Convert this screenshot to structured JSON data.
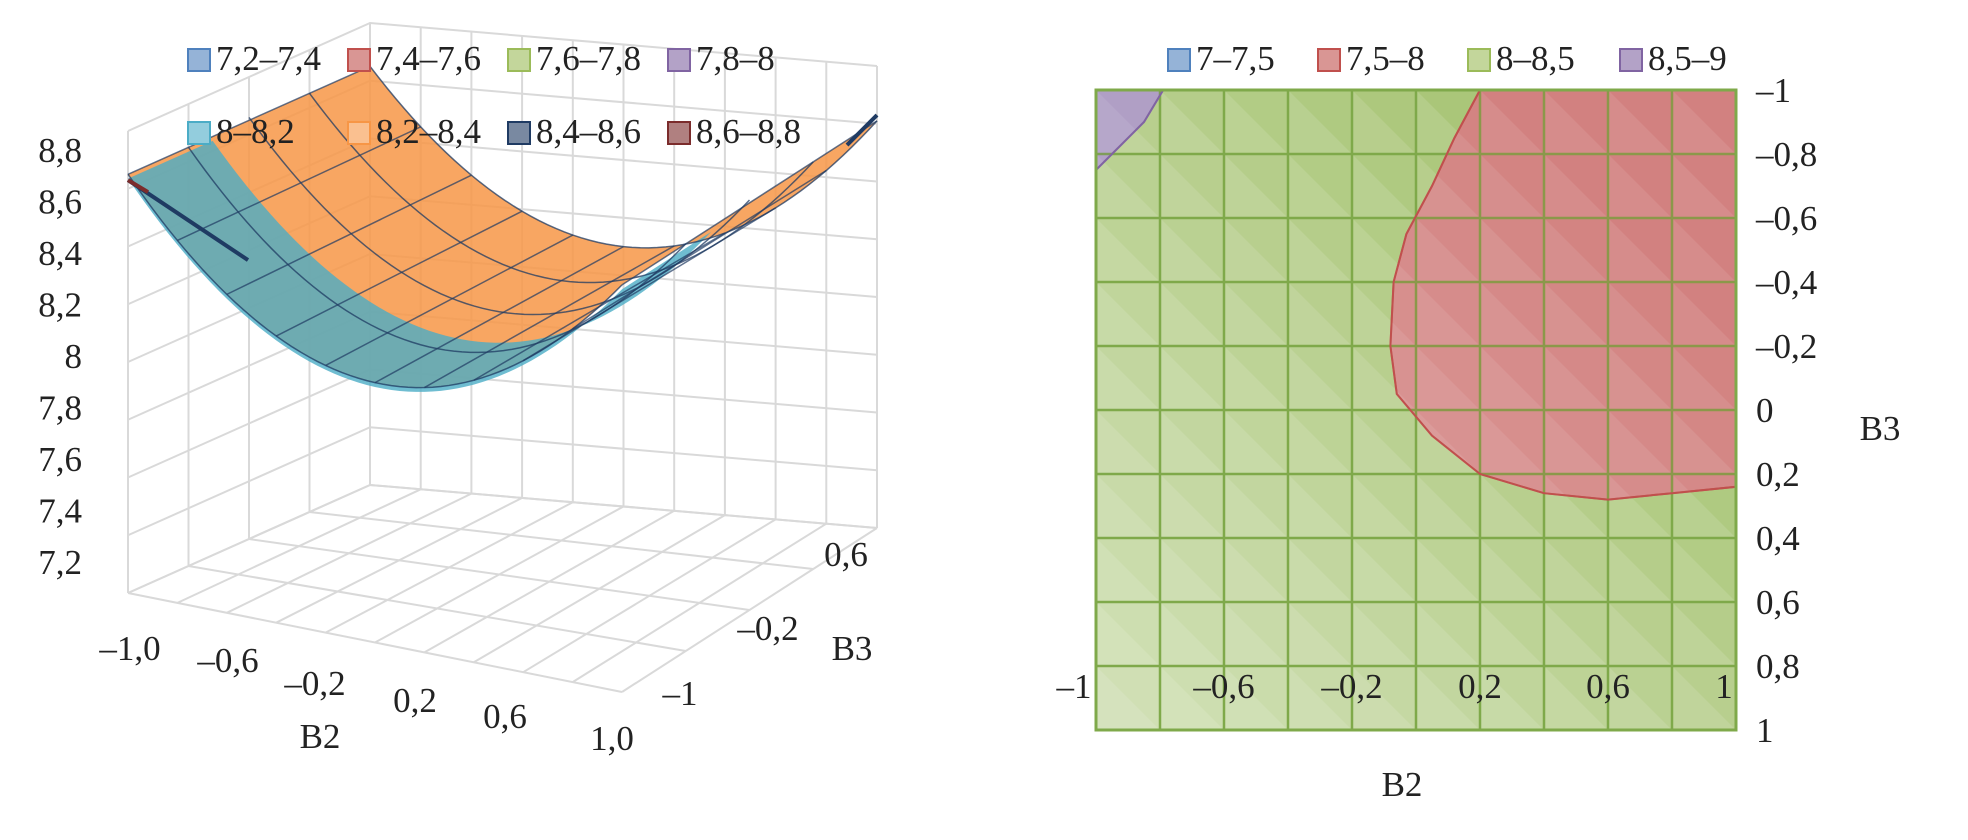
{
  "chart_data": [
    {
      "type": "surface-3d",
      "legend_position": "top",
      "legend": [
        {
          "label": "7,2–7,4",
          "color": "#4f81bd"
        },
        {
          "label": "7,4–7,6",
          "color": "#c0504d"
        },
        {
          "label": "7,6–7,8",
          "color": "#9bbb59"
        },
        {
          "label": "7,8–8",
          "color": "#8064a2"
        },
        {
          "label": "8–8,2",
          "color": "#4bacc6"
        },
        {
          "label": "8,2–8,4",
          "color": "#f79646"
        },
        {
          "label": "8,4–8,6",
          "color": "#1f3b63"
        },
        {
          "label": "8,6–8,8",
          "color": "#7b2c2c"
        }
      ],
      "z_ticks": [
        "8,8",
        "8,6",
        "8,4",
        "8,2",
        "8",
        "7,8",
        "7,6",
        "7,4",
        "7,2"
      ],
      "zlim": [
        7.2,
        8.8
      ],
      "x_ticks": [
        "–1,0",
        "–0,6",
        "–0,2",
        "0,2",
        "0,6",
        "1,0"
      ],
      "y_ticks": [
        "–1",
        "–0,2",
        "0,6"
      ],
      "xlabel": "B2",
      "ylabel": "B3",
      "grid": true,
      "surface_curve": {
        "x": [
          -1.0,
          -0.6,
          -0.2,
          0.2,
          0.6,
          1.0
        ],
        "z": [
          8.65,
          8.3,
          8.12,
          8.1,
          8.25,
          8.62
        ]
      }
    },
    {
      "type": "contour",
      "legend_position": "top",
      "legend": [
        {
          "label": "7–7,5",
          "color": "#4f81bd"
        },
        {
          "label": "7,5–8",
          "color": "#c0504d"
        },
        {
          "label": "8–8,5",
          "color": "#9bbb59"
        },
        {
          "label": "8,5–9",
          "color": "#8064a2"
        }
      ],
      "x_ticks": [
        "–1",
        "–0,6",
        "–0,2",
        "0,2",
        "0,6",
        "1"
      ],
      "y_ticks": [
        "–1",
        "–0,8",
        "–0,6",
        "–0,4",
        "–0,2",
        "0",
        "0,2",
        "0,4",
        "0,6",
        "0,8",
        "1"
      ],
      "xlim": [
        -1,
        1
      ],
      "ylim": [
        -1,
        1
      ],
      "xlabel": "B2",
      "ylabel": "B3",
      "grid": true,
      "regions": [
        {
          "range": "8–8,5",
          "fills": "background"
        },
        {
          "range": "7,5–8",
          "boundary": [
            [
              0.2,
              -1
            ],
            [
              0.12,
              -0.85
            ],
            [
              0.05,
              -0.7
            ],
            [
              -0.03,
              -0.55
            ],
            [
              -0.07,
              -0.4
            ],
            [
              -0.08,
              -0.2
            ],
            [
              -0.06,
              -0.05
            ],
            [
              0.05,
              0.08
            ],
            [
              0.2,
              0.2
            ],
            [
              0.4,
              0.26
            ],
            [
              0.6,
              0.28
            ],
            [
              0.8,
              0.26
            ],
            [
              1.0,
              0.24
            ],
            [
              1.0,
              -1
            ]
          ]
        },
        {
          "range": "8,5–9",
          "boundary": [
            [
              -1,
              -1
            ],
            [
              -0.79,
              -1
            ],
            [
              -0.85,
              -0.9
            ],
            [
              -0.95,
              -0.8
            ],
            [
              -1,
              -0.75
            ]
          ]
        }
      ]
    }
  ]
}
